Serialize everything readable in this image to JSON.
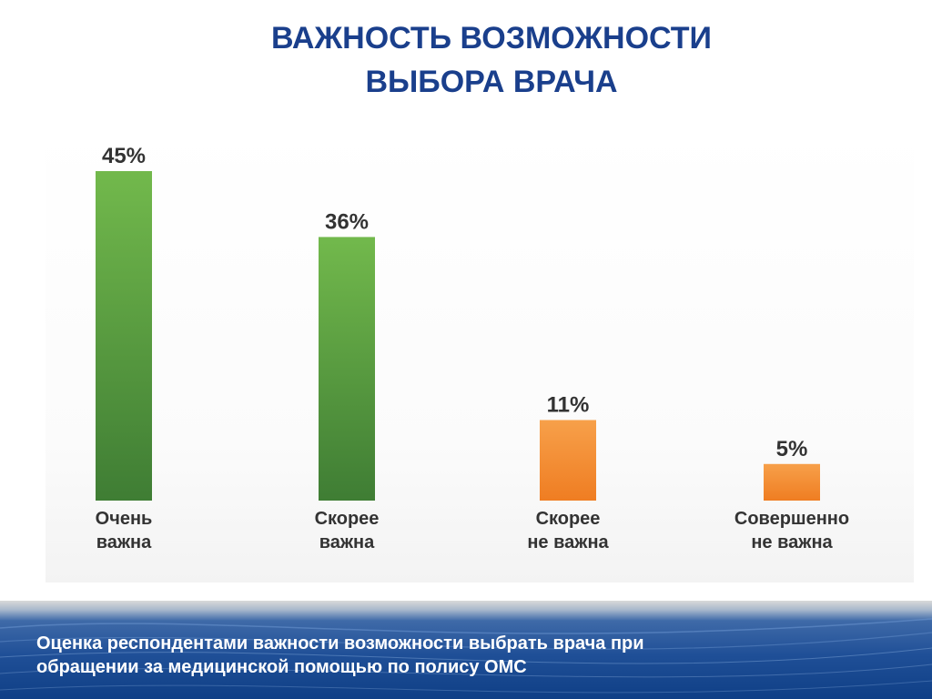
{
  "title": {
    "line1": "ВАЖНОСТЬ ВОЗМОЖНОСТИ",
    "line2": "ВЫБОРА ВРАЧА"
  },
  "chart_data": {
    "type": "bar",
    "categories": [
      [
        "Очень",
        "важна"
      ],
      [
        "Скорее",
        "важна"
      ],
      [
        "Скорее",
        "не важна"
      ],
      [
        "Совершенно",
        "не важна"
      ]
    ],
    "values": [
      45,
      36,
      11,
      5
    ],
    "value_labels": [
      "45%",
      "36%",
      "11%",
      "5%"
    ],
    "unit": "%",
    "ylim": [
      0,
      45
    ],
    "grid": false,
    "legend": "none",
    "colors": {
      "positive_top": "#72b94c",
      "positive_bottom": "#3f7d34",
      "negative_top": "#f7a04a",
      "negative_bottom": "#ef7d22"
    },
    "bar_color_groups": [
      "positive",
      "positive",
      "negative",
      "negative"
    ]
  },
  "caption": {
    "line1": "Оценка респондентами важности возможности выбрать врача при",
    "line2": "обращении за медицинской помощью по полису ОМС"
  },
  "colors": {
    "title": "#1a3f8c",
    "footer": "#1f4f97",
    "text": "#333333"
  }
}
